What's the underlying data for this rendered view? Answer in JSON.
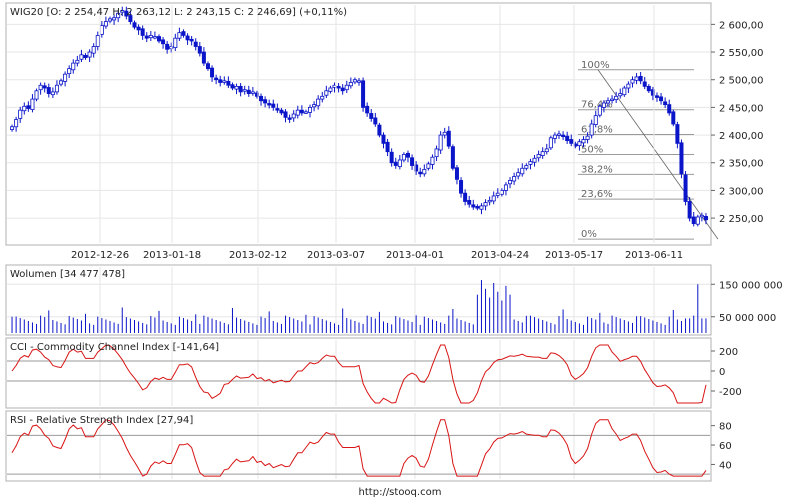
{
  "chart_data": [
    {
      "type": "candlestick",
      "title": "WIG20 [O: 2 254,47  H: 2 263,12  L: 2 243,15  C: 2 246,69]  (+0,11%)",
      "x_ticks": [
        "2012-12-26",
        "2013-01-18",
        "2013-02-12",
        "2013-03-07",
        "2013-04-01",
        "2013-04-24",
        "2013-05-17",
        "2013-06-11"
      ],
      "y_ticks": [
        "2 250,00",
        "2 300,00",
        "2 350,00",
        "2 400,00",
        "2 450,00",
        "2 500,00",
        "2 550,00",
        "2 600,00"
      ],
      "y_tick_values": [
        2250,
        2300,
        2350,
        2400,
        2450,
        2500,
        2550,
        2600
      ],
      "ylim": [
        2205,
        2635
      ],
      "close": [
        2415,
        2428,
        2445,
        2452,
        2448,
        2465,
        2480,
        2490,
        2485,
        2475,
        2478,
        2490,
        2498,
        2510,
        2520,
        2530,
        2535,
        2545,
        2540,
        2550,
        2560,
        2580,
        2598,
        2605,
        2610,
        2612,
        2620,
        2625,
        2615,
        2605,
        2595,
        2590,
        2580,
        2575,
        2580,
        2578,
        2570,
        2565,
        2555,
        2560,
        2575,
        2585,
        2580,
        2572,
        2570,
        2560,
        2548,
        2530,
        2520,
        2505,
        2500,
        2495,
        2498,
        2490,
        2485,
        2488,
        2478,
        2482,
        2475,
        2478,
        2470,
        2462,
        2458,
        2455,
        2450,
        2445,
        2440,
        2432,
        2430,
        2438,
        2445,
        2440,
        2442,
        2450,
        2455,
        2465,
        2470,
        2480,
        2485,
        2490,
        2485,
        2480,
        2490,
        2495,
        2500,
        2498,
        2450,
        2440,
        2430,
        2420,
        2400,
        2385,
        2370,
        2350,
        2345,
        2355,
        2365,
        2360,
        2345,
        2335,
        2330,
        2338,
        2348,
        2360,
        2375,
        2400,
        2405,
        2380,
        2340,
        2320,
        2295,
        2280,
        2275,
        2270,
        2268,
        2272,
        2278,
        2282,
        2290,
        2295,
        2300,
        2310,
        2318,
        2325,
        2332,
        2340,
        2345,
        2352,
        2358,
        2365,
        2370,
        2375,
        2395,
        2400,
        2402,
        2398,
        2390,
        2385,
        2380,
        2388,
        2392,
        2398,
        2420,
        2435,
        2452,
        2458,
        2462,
        2465,
        2470,
        2475,
        2485,
        2492,
        2500,
        2505,
        2498,
        2488,
        2480,
        2472,
        2468,
        2462,
        2455,
        2440,
        2420,
        2385,
        2330,
        2280,
        2250,
        2240,
        2252,
        2255,
        2247
      ]
    },
    {
      "type": "bar",
      "title": "Wolumen [34 477 478]",
      "y_ticks": [
        "50 000 000",
        "150 000 000"
      ],
      "y_tick_values": [
        50000000,
        150000000
      ],
      "ylim": [
        0,
        200000000
      ]
    },
    {
      "type": "line",
      "title": "CCI - Commodity Channel Index [-141,64]",
      "y_ticks": [
        "200",
        "0",
        "-200"
      ],
      "y_tick_values": [
        200,
        0,
        -200
      ],
      "ylim": [
        -350,
        300
      ]
    },
    {
      "type": "line",
      "title": "RSI - Relative Strength Index [27,94]",
      "y_ticks": [
        "80",
        "60",
        "40"
      ],
      "y_tick_values": [
        80,
        60,
        40
      ],
      "ylim": [
        25,
        92
      ]
    }
  ],
  "fibonacci": {
    "levels": [
      {
        "label": "100%",
        "ratio": 1.0
      },
      {
        "label": "76,4%",
        "ratio": 0.764
      },
      {
        "label": "61,8%",
        "ratio": 0.618
      },
      {
        "label": "50%",
        "ratio": 0.5
      },
      {
        "label": "38,2%",
        "ratio": 0.382
      },
      {
        "label": "23,6%",
        "ratio": 0.236
      },
      {
        "label": "0%",
        "ratio": 0.0
      }
    ],
    "high": 2518,
    "low": 2212
  },
  "colors": {
    "candle": "#0a14c8",
    "volume": "#0a14c8",
    "indicator": "#d81414"
  },
  "footer": "http://stooq.com"
}
